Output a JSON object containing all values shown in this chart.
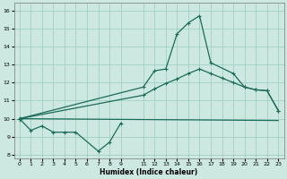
{
  "xlabel": "Humidex (Indice chaleur)",
  "xlim": [
    -0.5,
    23.5
  ],
  "ylim": [
    7.8,
    16.4
  ],
  "xticks": [
    0,
    1,
    2,
    3,
    4,
    5,
    6,
    7,
    8,
    9,
    11,
    12,
    13,
    14,
    15,
    16,
    17,
    18,
    19,
    20,
    21,
    22,
    23
  ],
  "yticks": [
    8,
    9,
    10,
    11,
    12,
    13,
    14,
    15,
    16
  ],
  "bg_color": "#cce8e0",
  "grid_color": "#99ccbb",
  "line_color": "#1a6b5a",
  "line1_zigzag": {
    "x": [
      0,
      1,
      2,
      3,
      4,
      5,
      7,
      8,
      9
    ],
    "y": [
      10.0,
      9.35,
      9.6,
      9.25,
      9.25,
      9.25,
      8.2,
      8.7,
      9.75
    ]
  },
  "line2_flat": {
    "x": [
      0,
      23
    ],
    "y": [
      10.0,
      9.9
    ]
  },
  "line3_mid": {
    "x": [
      0,
      11,
      12,
      13,
      14,
      15,
      16,
      17,
      18,
      19,
      20,
      21,
      22,
      23
    ],
    "y": [
      10.0,
      11.3,
      11.65,
      11.95,
      12.2,
      12.5,
      12.75,
      12.5,
      12.25,
      12.0,
      11.75,
      11.6,
      11.55,
      10.45
    ]
  },
  "line4_peak": {
    "x": [
      0,
      11,
      12,
      13,
      14,
      15,
      16,
      17,
      19,
      20,
      21,
      22,
      23
    ],
    "y": [
      10.0,
      11.75,
      12.65,
      12.75,
      14.7,
      15.3,
      15.7,
      13.1,
      12.5,
      11.75,
      11.6,
      11.55,
      10.45
    ]
  }
}
